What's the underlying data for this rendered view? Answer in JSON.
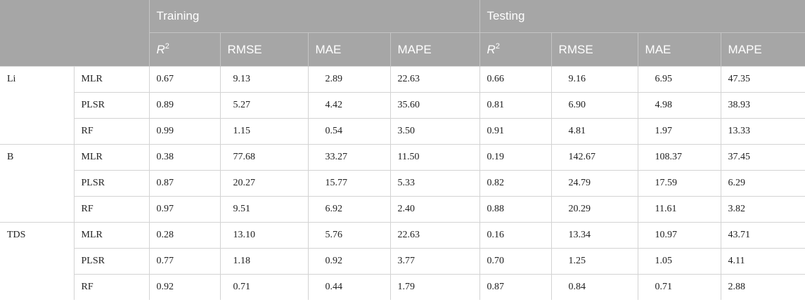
{
  "header": {
    "group_training": "Training",
    "group_testing": "Testing",
    "r2_base": "R",
    "r2_sup": "2",
    "metrics": [
      "RMSE",
      "MAE",
      "MAPE"
    ]
  },
  "groups": [
    {
      "name": "Li",
      "rows": [
        {
          "model": "MLR",
          "train": [
            "0.67",
            "9.13",
            "2.89",
            "22.63"
          ],
          "test": [
            "0.66",
            "9.16",
            "6.95",
            "47.35"
          ]
        },
        {
          "model": "PLSR",
          "train": [
            "0.89",
            "5.27",
            "4.42",
            "35.60"
          ],
          "test": [
            "0.81",
            "6.90",
            "4.98",
            "38.93"
          ]
        },
        {
          "model": "RF",
          "train": [
            "0.99",
            "1.15",
            "0.54",
            "3.50"
          ],
          "test": [
            "0.91",
            "4.81",
            "1.97",
            "13.33"
          ]
        }
      ]
    },
    {
      "name": "B",
      "rows": [
        {
          "model": "MLR",
          "train": [
            "0.38",
            "77.68",
            "33.27",
            "11.50"
          ],
          "test": [
            "0.19",
            "142.67",
            "108.37",
            "37.45"
          ]
        },
        {
          "model": "PLSR",
          "train": [
            "0.87",
            "20.27",
            "15.77",
            "5.33"
          ],
          "test": [
            "0.82",
            "24.79",
            "17.59",
            "6.29"
          ]
        },
        {
          "model": "RF",
          "train": [
            "0.97",
            "9.51",
            "6.92",
            "2.40"
          ],
          "test": [
            "0.88",
            "20.29",
            "11.61",
            "3.82"
          ]
        }
      ]
    },
    {
      "name": "TDS",
      "rows": [
        {
          "model": "MLR",
          "train": [
            "0.28",
            "13.10",
            "5.76",
            "22.63"
          ],
          "test": [
            "0.16",
            "13.34",
            "10.97",
            "43.71"
          ]
        },
        {
          "model": "PLSR",
          "train": [
            "0.77",
            "1.18",
            "0.92",
            "3.77"
          ],
          "test": [
            "0.70",
            "1.25",
            "1.05",
            "4.11"
          ]
        },
        {
          "model": "RF",
          "train": [
            "0.92",
            "0.71",
            "0.44",
            "1.79"
          ],
          "test": [
            "0.87",
            "0.84",
            "0.71",
            "2.88"
          ]
        }
      ]
    }
  ]
}
